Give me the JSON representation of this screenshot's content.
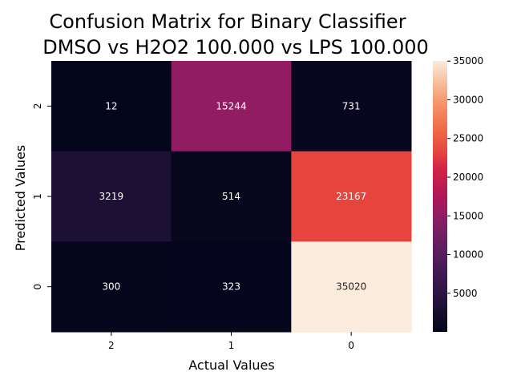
{
  "chart_data": {
    "type": "heatmap",
    "title": [
      "Confusion Matrix for Binary Classifier",
      "DMSO vs H2O2 100.000 vs LPS 100.000"
    ],
    "xlabel": "Actual Values",
    "ylabel": "Predicted Values",
    "x_categories": [
      "2",
      "1",
      "0"
    ],
    "y_categories": [
      "2",
      "1",
      "0"
    ],
    "values": [
      [
        12,
        15244,
        731
      ],
      [
        3219,
        514,
        23167
      ],
      [
        300,
        323,
        35020
      ]
    ],
    "colorbar": {
      "range": [
        12,
        35020
      ],
      "ticks": [
        5000,
        10000,
        15000,
        20000,
        25000,
        30000,
        35000
      ],
      "colormap": "rocket"
    },
    "grid": false
  }
}
